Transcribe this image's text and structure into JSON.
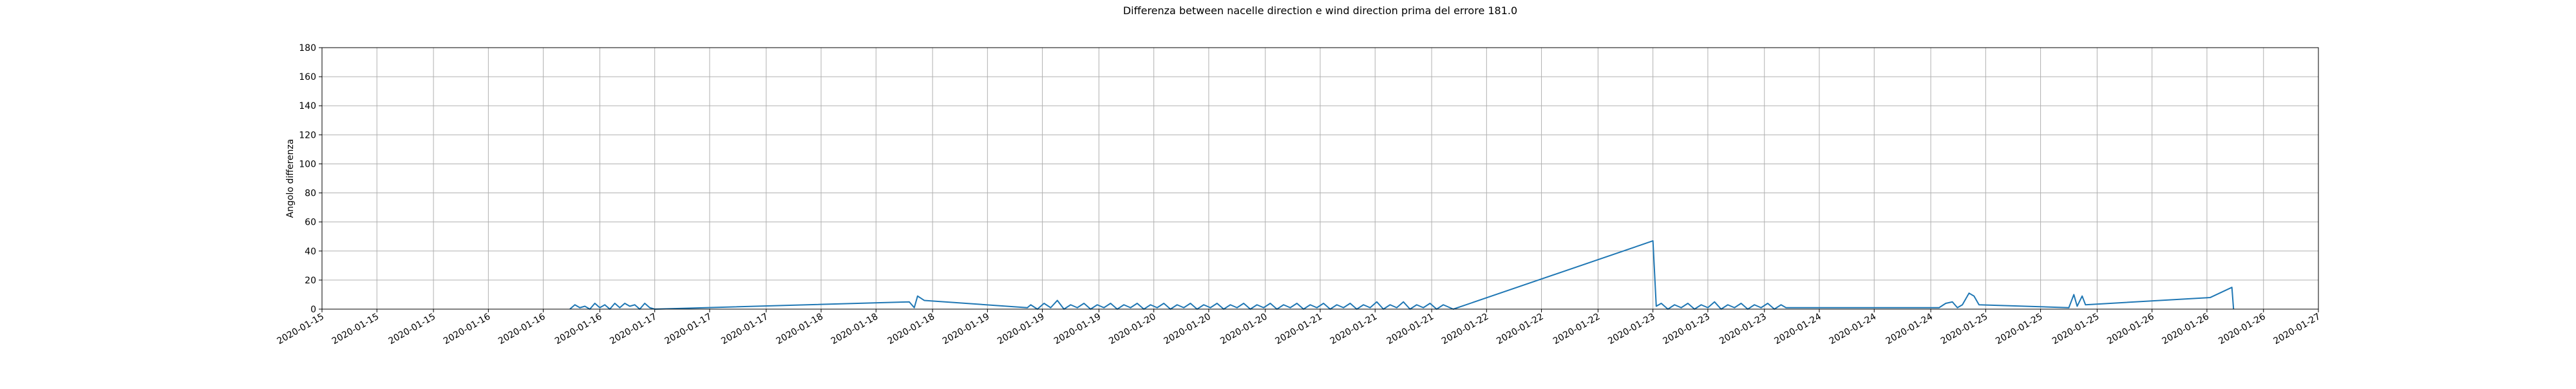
{
  "chart_data": {
    "type": "line",
    "title": "Differenza between nacelle direction e wind direction prima del errore 181.0",
    "y_label": "Angolo differenza",
    "color": "#1f77b4",
    "grid": true,
    "xlim": [
      15,
      27
    ],
    "ylim": [
      0,
      180
    ],
    "yticks": [
      0,
      20,
      40,
      60,
      80,
      100,
      120,
      140,
      160,
      180
    ],
    "xticks": [
      {
        "value": 15,
        "label": "2020-01-15"
      },
      {
        "value": 15.33,
        "label": "2020-01-15"
      },
      {
        "value": 15.67,
        "label": "2020-01-15"
      },
      {
        "value": 16,
        "label": "2020-01-16"
      },
      {
        "value": 16.33,
        "label": "2020-01-16"
      },
      {
        "value": 16.67,
        "label": "2020-01-16"
      },
      {
        "value": 17,
        "label": "2020-01-17"
      },
      {
        "value": 17.33,
        "label": "2020-01-17"
      },
      {
        "value": 17.67,
        "label": "2020-01-17"
      },
      {
        "value": 18,
        "label": "2020-01-18"
      },
      {
        "value": 18.33,
        "label": "2020-01-18"
      },
      {
        "value": 18.67,
        "label": "2020-01-18"
      },
      {
        "value": 19,
        "label": "2020-01-19"
      },
      {
        "value": 19.33,
        "label": "2020-01-19"
      },
      {
        "value": 19.67,
        "label": "2020-01-19"
      },
      {
        "value": 20,
        "label": "2020-01-20"
      },
      {
        "value": 20.33,
        "label": "2020-01-20"
      },
      {
        "value": 20.67,
        "label": "2020-01-20"
      },
      {
        "value": 21,
        "label": "2020-01-21"
      },
      {
        "value": 21.33,
        "label": "2020-01-21"
      },
      {
        "value": 21.67,
        "label": "2020-01-21"
      },
      {
        "value": 22,
        "label": "2020-01-22"
      },
      {
        "value": 22.33,
        "label": "2020-01-22"
      },
      {
        "value": 22.67,
        "label": "2020-01-22"
      },
      {
        "value": 23,
        "label": "2020-01-23"
      },
      {
        "value": 23.33,
        "label": "2020-01-23"
      },
      {
        "value": 23.67,
        "label": "2020-01-23"
      },
      {
        "value": 24,
        "label": "2020-01-24"
      },
      {
        "value": 24.33,
        "label": "2020-01-24"
      },
      {
        "value": 24.67,
        "label": "2020-01-24"
      },
      {
        "value": 25,
        "label": "2020-01-25"
      },
      {
        "value": 25.33,
        "label": "2020-01-25"
      },
      {
        "value": 25.67,
        "label": "2020-01-25"
      },
      {
        "value": 26,
        "label": "2020-01-26"
      },
      {
        "value": 26.33,
        "label": "2020-01-26"
      },
      {
        "value": 26.67,
        "label": "2020-01-26"
      },
      {
        "value": 27,
        "label": "2020-01-27"
      }
    ],
    "x": [
      16.49,
      16.52,
      16.55,
      16.58,
      16.61,
      16.64,
      16.67,
      16.7,
      16.73,
      16.76,
      16.79,
      16.82,
      16.85,
      16.88,
      16.91,
      16.94,
      16.97,
      17.0,
      18.53,
      18.56,
      18.58,
      18.62,
      19.24,
      19.26,
      19.3,
      19.34,
      19.38,
      19.42,
      19.46,
      19.5,
      19.54,
      19.58,
      19.62,
      19.66,
      19.7,
      19.74,
      19.78,
      19.82,
      19.86,
      19.9,
      19.94,
      19.98,
      20.02,
      20.06,
      20.1,
      20.14,
      20.18,
      20.22,
      20.26,
      20.3,
      20.34,
      20.38,
      20.42,
      20.46,
      20.5,
      20.54,
      20.58,
      20.62,
      20.66,
      20.7,
      20.74,
      20.78,
      20.82,
      20.86,
      20.9,
      20.94,
      20.98,
      21.02,
      21.06,
      21.1,
      21.14,
      21.18,
      21.22,
      21.26,
      21.3,
      21.34,
      21.38,
      21.42,
      21.46,
      21.5,
      21.54,
      21.58,
      21.62,
      21.66,
      21.7,
      21.74,
      21.8,
      23.0,
      23.02,
      23.05,
      23.09,
      23.13,
      23.17,
      23.21,
      23.25,
      23.29,
      23.33,
      23.37,
      23.41,
      23.45,
      23.49,
      23.53,
      23.57,
      23.61,
      23.65,
      23.69,
      23.73,
      23.77,
      23.8,
      24.72,
      24.76,
      24.8,
      24.83,
      24.86,
      24.9,
      24.93,
      24.96,
      25.5,
      25.53,
      25.55,
      25.58,
      25.6,
      26.35,
      26.48,
      26.49
    ],
    "values": [
      0,
      3,
      1,
      2,
      0,
      4,
      1,
      3,
      0,
      4,
      1,
      4,
      2,
      3,
      0,
      4,
      1,
      0,
      5,
      1,
      9,
      6,
      1,
      3,
      0,
      4,
      1,
      6,
      0,
      3,
      1,
      4,
      0,
      3,
      1,
      4,
      0,
      3,
      1,
      4,
      0,
      3,
      1,
      4,
      0,
      3,
      1,
      4,
      0,
      3,
      1,
      4,
      0,
      3,
      1,
      4,
      0,
      3,
      1,
      4,
      0,
      3,
      1,
      4,
      0,
      3,
      1,
      4,
      0,
      3,
      1,
      4,
      0,
      3,
      1,
      5,
      0,
      3,
      1,
      5,
      0,
      3,
      1,
      4,
      0,
      3,
      0,
      47,
      2,
      4,
      0,
      3,
      1,
      4,
      0,
      3,
      1,
      5,
      0,
      3,
      1,
      4,
      0,
      3,
      1,
      4,
      0,
      3,
      1,
      1,
      4,
      5,
      1,
      3,
      11,
      9,
      3,
      1,
      10,
      2,
      9,
      3,
      8,
      15,
      0
    ]
  }
}
